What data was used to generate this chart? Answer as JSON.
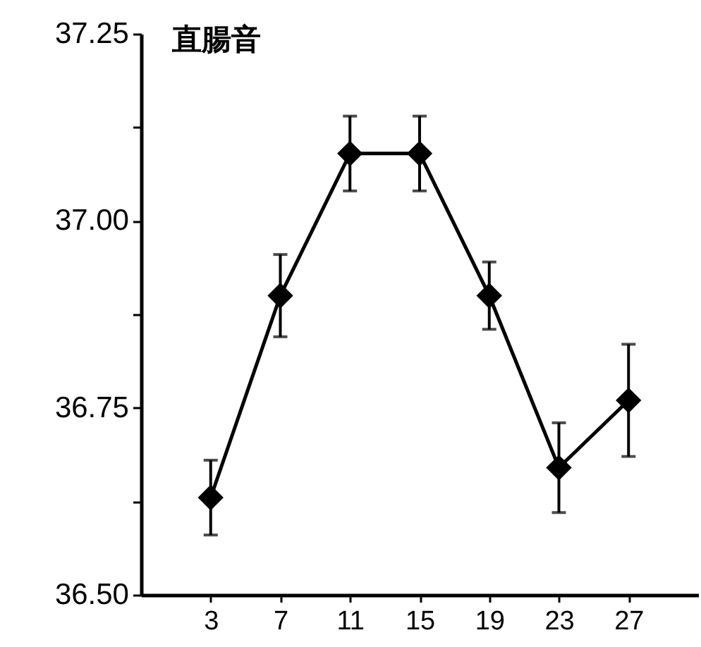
{
  "chart_data": {
    "type": "line",
    "title": "直腸音",
    "x": [
      3,
      7,
      11,
      15,
      19,
      23,
      27
    ],
    "series": [
      {
        "color": "#000000",
        "values": [
          36.63,
          36.9,
          37.09,
          37.09,
          36.9,
          36.67,
          36.76
        ],
        "errors": [
          0.05,
          0.055,
          0.05,
          0.05,
          0.045,
          0.06,
          0.075
        ]
      }
    ],
    "xlim": [
      -1,
      31
    ],
    "xticks": [
      3,
      7,
      11,
      15,
      19,
      23,
      27
    ],
    "ylim": [
      36.5,
      37.25
    ],
    "yticks": [
      {
        "value": 36.5,
        "label": "36.50"
      },
      {
        "value": 36.625,
        "label": null
      },
      36.75,
      {
        "value": 36.875,
        "label": null
      },
      {
        "value": 37,
        "label": "37.00"
      },
      {
        "value": 37.125,
        "label": null
      },
      37.25
    ],
    "marker": "diamond",
    "line_style": "solid",
    "grid": false
  }
}
